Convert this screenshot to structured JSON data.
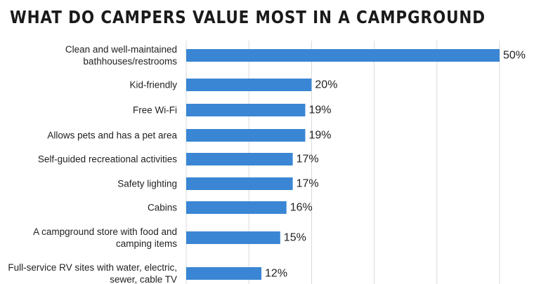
{
  "colors": {
    "bar": "#3a86d4",
    "grid": "#d9d9d9",
    "text": "#222222"
  },
  "chart_data": {
    "type": "bar",
    "orientation": "horizontal",
    "title": "WHAT DO CAMPERS VALUE MOST IN A CAMPGROUND",
    "xlabel": "",
    "ylabel": "",
    "xlim": [
      0,
      50
    ],
    "grid": true,
    "categories": [
      [
        "Clean and well-maintained",
        "bathhouses/restrooms"
      ],
      [
        "Kid-friendly"
      ],
      [
        "Free Wi-Fi"
      ],
      [
        "Allows pets and has a pet area"
      ],
      [
        "Self-guided recreational activities"
      ],
      [
        "Safety lighting"
      ],
      [
        "Cabins"
      ],
      [
        "A campground store with food and",
        "camping items"
      ],
      [
        "Full-service RV sites with water, electric,",
        "sewer, cable TV"
      ]
    ],
    "values": [
      50,
      20,
      19,
      19,
      17,
      17,
      16,
      15,
      12
    ],
    "value_labels": [
      "50%",
      "20%",
      "19%",
      "19%",
      "17%",
      "17%",
      "16%",
      "15%",
      "12%"
    ]
  }
}
